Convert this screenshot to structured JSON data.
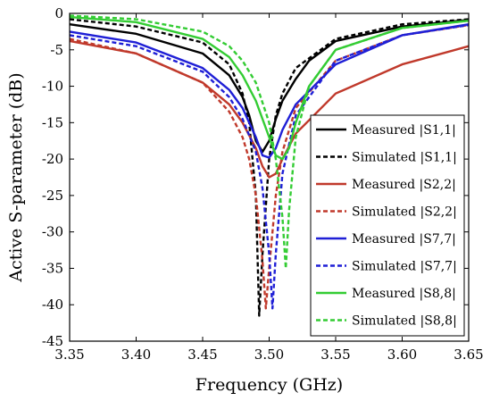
{
  "chart_data": {
    "type": "line",
    "xlabel": "Frequency (GHz)",
    "ylabel": "Active S-parameter (dB)",
    "xlim": [
      3.35,
      3.65
    ],
    "ylim": [
      -45,
      0
    ],
    "x_ticks": [
      "3.35",
      "3.40",
      "3.45",
      "3.50",
      "3.55",
      "3.60",
      "3.65"
    ],
    "y_ticks": [
      "0",
      "-5",
      "-10",
      "-15",
      "-20",
      "-25",
      "-30",
      "-35",
      "-40",
      "-45"
    ],
    "grid": false,
    "legend_position": "right",
    "series": [
      {
        "name": "Measured |S1,1|",
        "color": "#000000",
        "style": "solid",
        "x": [
          3.35,
          3.4,
          3.45,
          3.47,
          3.48,
          3.485,
          3.49,
          3.495,
          3.5,
          3.505,
          3.51,
          3.52,
          3.53,
          3.55,
          3.6,
          3.65
        ],
        "y": [
          -1.5,
          -2.8,
          -5.5,
          -8.5,
          -11.5,
          -14,
          -17.5,
          -19,
          -17.5,
          -14.5,
          -12,
          -9,
          -6.5,
          -3.8,
          -1.8,
          -0.9
        ]
      },
      {
        "name": "Simulated |S1,1|",
        "color": "#000000",
        "style": "dashed",
        "x": [
          3.35,
          3.4,
          3.45,
          3.47,
          3.48,
          3.485,
          3.49,
          3.4925,
          3.495,
          3.5,
          3.505,
          3.51,
          3.52,
          3.55,
          3.6,
          3.65
        ],
        "y": [
          -0.8,
          -1.8,
          -4,
          -7,
          -11,
          -15,
          -25,
          -41.5,
          -33,
          -20,
          -14,
          -11,
          -7.5,
          -3.5,
          -1.5,
          -0.8
        ]
      },
      {
        "name": "Measured |S2,2|",
        "color": "#c0392b",
        "style": "solid",
        "x": [
          3.35,
          3.4,
          3.45,
          3.47,
          3.48,
          3.49,
          3.495,
          3.5,
          3.505,
          3.51,
          3.52,
          3.55,
          3.6,
          3.65
        ],
        "y": [
          -3.8,
          -5.5,
          -9.5,
          -12.5,
          -15,
          -18.5,
          -21,
          -22.5,
          -22,
          -20,
          -16.5,
          -11,
          -7,
          -4.5
        ]
      },
      {
        "name": "Simulated |S2,2|",
        "color": "#c0392b",
        "style": "dashed",
        "x": [
          3.35,
          3.4,
          3.45,
          3.47,
          3.48,
          3.485,
          3.49,
          3.495,
          3.4975,
          3.5,
          3.505,
          3.51,
          3.52,
          3.55,
          3.6,
          3.65
        ],
        "y": [
          -3.5,
          -5.5,
          -9.5,
          -13.5,
          -17,
          -20,
          -25,
          -34,
          -40.5,
          -35,
          -25,
          -19,
          -13,
          -6.5,
          -3,
          -1.6
        ]
      },
      {
        "name": "Measured |S7,7|",
        "color": "#1f1fd6",
        "style": "solid",
        "x": [
          3.35,
          3.4,
          3.45,
          3.47,
          3.48,
          3.49,
          3.495,
          3.5,
          3.505,
          3.51,
          3.52,
          3.55,
          3.6,
          3.65
        ],
        "y": [
          -2.5,
          -4,
          -7.5,
          -10.5,
          -13,
          -17,
          -19.5,
          -19.8,
          -18.5,
          -16,
          -12.5,
          -7,
          -3,
          -1.5
        ]
      },
      {
        "name": "Simulated |S7,7|",
        "color": "#1f1fd6",
        "style": "dashed",
        "x": [
          3.35,
          3.4,
          3.45,
          3.47,
          3.48,
          3.49,
          3.495,
          3.5,
          3.5025,
          3.505,
          3.51,
          3.52,
          3.55,
          3.6,
          3.65
        ],
        "y": [
          -3,
          -4.5,
          -8,
          -11.5,
          -14.5,
          -19,
          -24,
          -33,
          -40.5,
          -33,
          -22,
          -14,
          -6.5,
          -3,
          -1.6
        ]
      },
      {
        "name": "Measured |S8,8|",
        "color": "#33cc33",
        "style": "solid",
        "x": [
          3.35,
          3.4,
          3.45,
          3.47,
          3.48,
          3.49,
          3.5,
          3.505,
          3.51,
          3.515,
          3.52,
          3.53,
          3.55,
          3.6,
          3.65
        ],
        "y": [
          -0.5,
          -1.2,
          -3.5,
          -6,
          -8.5,
          -12,
          -17,
          -19.5,
          -20,
          -18.5,
          -15,
          -10,
          -5,
          -2,
          -1
        ]
      },
      {
        "name": "Simulated |S8,8|",
        "color": "#33cc33",
        "style": "dashed",
        "x": [
          3.35,
          3.4,
          3.45,
          3.47,
          3.48,
          3.49,
          3.5,
          3.505,
          3.51,
          3.5125,
          3.515,
          3.52,
          3.53,
          3.55,
          3.6,
          3.65
        ],
        "y": [
          -0.3,
          -0.8,
          -2.5,
          -4.5,
          -6.5,
          -9.5,
          -15,
          -20,
          -28,
          -35,
          -27,
          -17,
          -10,
          -5,
          -2,
          -1
        ]
      }
    ]
  }
}
